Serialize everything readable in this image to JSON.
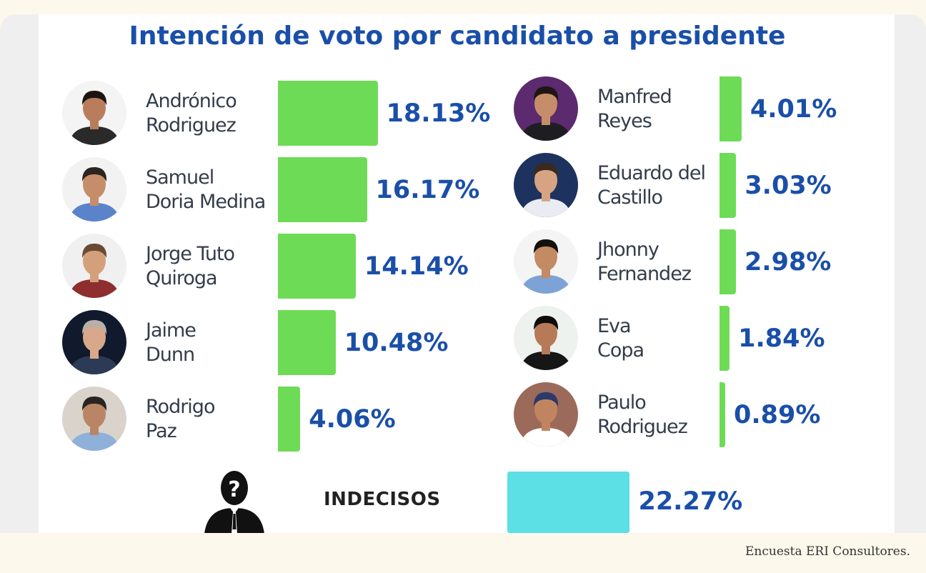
{
  "chart_data": {
    "type": "bar",
    "orientation": "horizontal",
    "title": "Intención de voto por candidato a presidente",
    "unit": "%",
    "categories": [
      "Andrónico Rodriguez",
      "Samuel Doria Medina",
      "Jorge Tuto Quiroga",
      "Jaime Dunn",
      "Rodrigo Paz",
      "Manfred Reyes",
      "Eduardo del Castillo",
      "Jhonny Fernandez",
      "Eva Copa",
      "Paulo Rodriguez",
      "INDECISOS"
    ],
    "values": [
      18.13,
      16.17,
      14.14,
      10.48,
      4.06,
      4.01,
      3.03,
      2.98,
      1.84,
      0.89,
      22.27
    ],
    "data_labels": [
      "18.13%",
      "16.17%",
      "14.14%",
      "10.48%",
      "4.06%",
      "4.01%",
      "3.03%",
      "2.98%",
      "1.84%",
      "0.89%",
      "22.27%"
    ],
    "bar_color": "#6edb57",
    "undecided_color": "#5ce0e6",
    "grid": false,
    "legend": "none",
    "layout": "two-column"
  },
  "candidates": [
    {
      "first": "Andrónico",
      "last": "Rodriguez",
      "label": "18.13%",
      "value": 18.13,
      "photo_icon": "candidate-photo",
      "photo_bg": "#f4f4f4",
      "skin": "#b97d5b",
      "hair": "#1c1410",
      "shirt": "#2a2a2a"
    },
    {
      "first": "Samuel",
      "last": "Doria Medina",
      "label": "16.17%",
      "value": 16.17,
      "photo_icon": "candidate-photo",
      "photo_bg": "#f2f2f2",
      "skin": "#c58d6a",
      "hair": "#2b2420",
      "shirt": "#5b83c9"
    },
    {
      "first": "Jorge Tuto",
      "last": "Quiroga",
      "label": "14.14%",
      "value": 14.14,
      "photo_icon": "candidate-photo",
      "photo_bg": "#f0f0f0",
      "skin": "#d4a07c",
      "hair": "#6b4a33",
      "shirt": "#8f2e2e"
    },
    {
      "first": "Jaime",
      "last": "Dunn",
      "label": "10.48%",
      "value": 10.48,
      "photo_icon": "candidate-photo",
      "photo_bg": "#101a2c",
      "skin": "#d9a88a",
      "hair": "#b8b0a8",
      "shirt": "#2c3a56"
    },
    {
      "first": "Rodrigo",
      "last": "Paz",
      "label": "4.06%",
      "value": 4.06,
      "photo_icon": "candidate-photo",
      "photo_bg": "#d9d3cc",
      "skin": "#b98565",
      "hair": "#2a2420",
      "shirt": "#8fb0d8"
    },
    {
      "first": "Manfred",
      "last": "Reyes",
      "label": "4.01%",
      "value": 4.01,
      "photo_icon": "candidate-photo",
      "photo_bg": "#5c2a6e",
      "skin": "#c58d6a",
      "hair": "#1e1612",
      "shirt": "#1e1e22"
    },
    {
      "first": "Eduardo del",
      "last": "Castillo",
      "label": "3.03%",
      "value": 3.03,
      "photo_icon": "candidate-photo",
      "photo_bg": "#1e3260",
      "skin": "#d6a482",
      "hair": "#3a2a1e",
      "shirt": "#e9ecf2"
    },
    {
      "first": "Jhonny",
      "last": "Fernandez",
      "label": "2.98%",
      "value": 2.98,
      "photo_icon": "candidate-photo",
      "photo_bg": "#f4f4f4",
      "skin": "#c48a64",
      "hair": "#15100c",
      "shirt": "#7da3d6"
    },
    {
      "first": "Eva",
      "last": "Copa",
      "label": "1.84%",
      "value": 1.84,
      "photo_icon": "candidate-photo",
      "photo_bg": "#eef2ee",
      "skin": "#b67a58",
      "hair": "#0e0c0c",
      "shirt": "#161616"
    },
    {
      "first": "Paulo",
      "last": "Rodriguez",
      "label": "0.89%",
      "value": 0.89,
      "photo_icon": "candidate-photo",
      "photo_bg": "#9c6a5a",
      "skin": "#c08560",
      "hair": "#2a3a6a",
      "shirt": "#ffffff"
    }
  ],
  "undecided": {
    "label": "INDECISOS",
    "value_label": "22.27%",
    "value": 22.27,
    "icon": "unknown-person-icon"
  },
  "source": "Encuesta ERI Consultores."
}
